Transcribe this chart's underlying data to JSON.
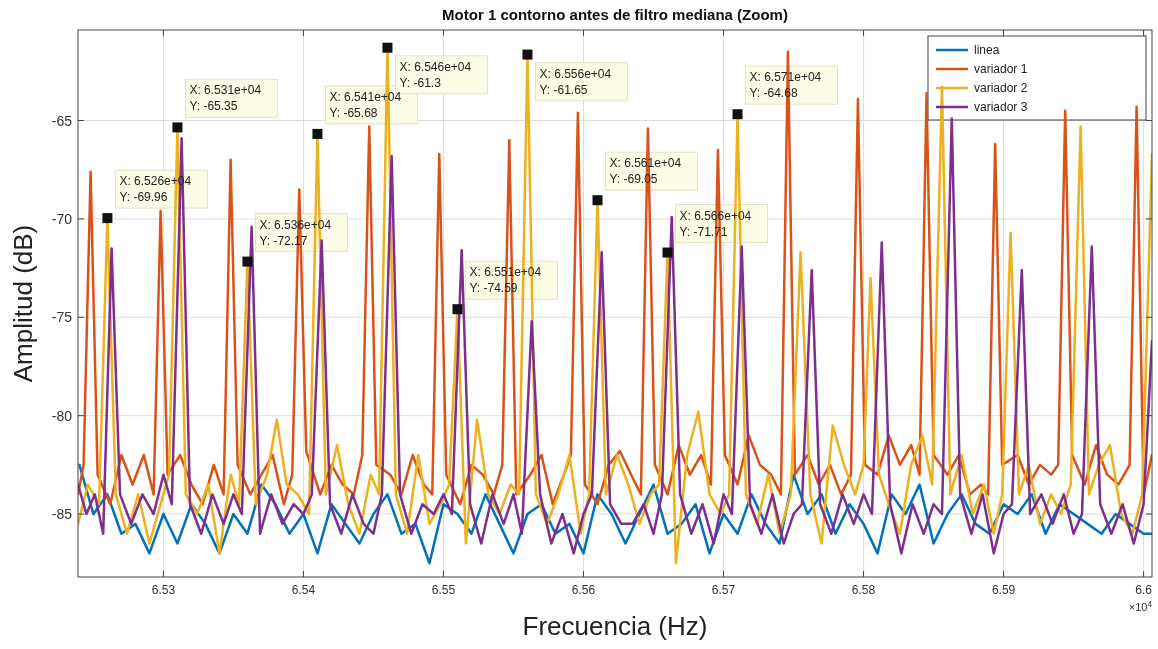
{
  "chart_data": {
    "type": "line",
    "title": "Motor 1 contorno antes de filtro mediana (Zoom)",
    "xlabel": "Frecuencia (Hz)",
    "ylabel": "Amplitud (dB)",
    "xlim": [
      6.5239,
      6.6006
    ],
    "ylim": [
      -88.2,
      -60.4
    ],
    "xticks": [
      6.53,
      6.54,
      6.55,
      6.56,
      6.57,
      6.58,
      6.59,
      6.6
    ],
    "yticks": [
      -85,
      -80,
      -75,
      -70,
      -65
    ],
    "grid": true,
    "legend": "top right",
    "marker": "none",
    "line_style": "solid",
    "series": [
      {
        "name": "linea",
        "color": "#0072bd",
        "x": [
          6.524,
          6.525,
          6.526,
          6.527,
          6.528,
          6.529,
          6.53,
          6.531,
          6.532,
          6.533,
          6.534,
          6.535,
          6.536,
          6.537,
          6.538,
          6.539,
          6.54,
          6.541,
          6.542,
          6.543,
          6.544,
          6.545,
          6.546,
          6.547,
          6.548,
          6.549,
          6.55,
          6.551,
          6.552,
          6.553,
          6.554,
          6.555,
          6.556,
          6.557,
          6.558,
          6.559,
          6.56,
          6.561,
          6.562,
          6.563,
          6.564,
          6.565,
          6.566,
          6.567,
          6.568,
          6.569,
          6.57,
          6.571,
          6.572,
          6.573,
          6.574,
          6.575,
          6.576,
          6.577,
          6.578,
          6.579,
          6.58,
          6.581,
          6.582,
          6.583,
          6.584,
          6.585,
          6.586,
          6.587,
          6.588,
          6.589,
          6.59,
          6.591,
          6.592,
          6.593,
          6.594,
          6.595,
          6.596,
          6.597,
          6.598,
          6.599,
          6.6,
          6.6006
        ],
        "values": [
          -82.5,
          -85,
          -84,
          -86,
          -85.5,
          -87,
          -85,
          -86.5,
          -84.5,
          -85.5,
          -87,
          -85,
          -86,
          -83.5,
          -84.5,
          -86,
          -85,
          -87,
          -84.5,
          -85.5,
          -86.5,
          -85,
          -84,
          -86,
          -85.5,
          -87.5,
          -84.5,
          -85,
          -86,
          -84,
          -85.5,
          -87,
          -85,
          -84.5,
          -86,
          -85.5,
          -87,
          -84,
          -85,
          -86.5,
          -85,
          -83.5,
          -86,
          -85.5,
          -84.5,
          -87,
          -85,
          -86,
          -84,
          -85.5,
          -86.5,
          -83,
          -85,
          -84,
          -86,
          -84.5,
          -85.5,
          -87,
          -84,
          -85,
          -83.5,
          -86.5,
          -85,
          -84,
          -85.5,
          -86,
          -84.5,
          -85,
          -84,
          -86,
          -84.5,
          -85,
          -85.5,
          -86,
          -85,
          -85.5,
          -86,
          -86
        ]
      },
      {
        "name": "variador 1",
        "color": "#d95319",
        "x": [
          6.5239,
          6.5243,
          6.5248,
          6.5253,
          6.5262,
          6.527,
          6.5278,
          6.5286,
          6.5293,
          6.5298,
          6.5303,
          6.5312,
          6.532,
          6.5328,
          6.5336,
          6.5343,
          6.5348,
          6.5353,
          6.5362,
          6.537,
          6.5378,
          6.5386,
          6.5392,
          6.5397,
          6.5402,
          6.5412,
          6.542,
          6.5428,
          6.5436,
          6.5442,
          6.5447,
          6.5452,
          6.5462,
          6.547,
          6.5478,
          6.5486,
          6.5492,
          6.5497,
          6.5502,
          6.5512,
          6.552,
          6.5528,
          6.5536,
          6.5542,
          6.5547,
          6.5552,
          6.5562,
          6.557,
          6.5578,
          6.5586,
          6.5591,
          6.5596,
          6.5601,
          6.561,
          6.5618,
          6.5626,
          6.5634,
          6.5641,
          6.5646,
          6.5651,
          6.566,
          6.5668,
          6.5676,
          6.5684,
          6.5691,
          6.5696,
          6.5701,
          6.571,
          6.5718,
          6.5726,
          6.5734,
          6.5741,
          6.5746,
          6.5751,
          6.576,
          6.5768,
          6.5776,
          6.5784,
          6.5791,
          6.5796,
          6.5801,
          6.581,
          6.5818,
          6.5826,
          6.5834,
          6.584,
          6.5845,
          6.585,
          6.586,
          6.5868,
          6.5876,
          6.5884,
          6.5889,
          6.5894,
          6.5899,
          6.591,
          6.5918,
          6.5926,
          6.5934,
          6.5939,
          6.5944,
          6.5949,
          6.5958,
          6.5966,
          6.5974,
          6.5982,
          6.599,
          6.5995,
          6.6,
          6.6006
        ],
        "values": [
          -84,
          -82.5,
          -67.6,
          -83,
          -84.5,
          -82,
          -83.5,
          -82,
          -84,
          -69.6,
          -83,
          -82,
          -83.5,
          -84.5,
          -82.5,
          -84,
          -67.0,
          -82.5,
          -84,
          -83,
          -82,
          -84.5,
          -83,
          -68.5,
          -81.8,
          -84,
          -82.5,
          -83.5,
          -84,
          -82,
          -65.3,
          -82.5,
          -83,
          -84,
          -82,
          -83.5,
          -84,
          -66.7,
          -83,
          -84.5,
          -82.5,
          -83,
          -84,
          -82.5,
          -66.0,
          -84,
          -83,
          -82,
          -84.5,
          -83,
          -82,
          -64.6,
          -83.5,
          -84.5,
          -82.5,
          -81.8,
          -83,
          -84,
          -65.4,
          -82.5,
          -84,
          -81.5,
          -83,
          -82,
          -83.5,
          -66.5,
          -82,
          -83.5,
          -81,
          -82.5,
          -83,
          -84,
          -61.5,
          -83,
          -82,
          -83.5,
          -82.5,
          -84,
          -83,
          -63.9,
          -82.5,
          -83,
          -81,
          -82.5,
          -81.5,
          -83,
          -63.6,
          -82,
          -83,
          -82,
          -84,
          -83.5,
          -84,
          -66.2,
          -82.5,
          -82,
          -83.5,
          -82.5,
          -83,
          -82.5,
          -64.5,
          -82,
          -83.5,
          -81.5,
          -83,
          -83.5,
          -82.5,
          -64.3,
          -84,
          -82
        ]
      },
      {
        "name": "variador 2",
        "color": "#edb120",
        "x": [
          6.5239,
          6.5246,
          6.5254,
          6.526,
          6.5266,
          6.5274,
          6.5282,
          6.529,
          6.5298,
          6.5304,
          6.531,
          6.5316,
          6.5324,
          6.5332,
          6.534,
          6.5348,
          6.5354,
          6.536,
          6.5366,
          6.5374,
          6.5381,
          6.5388,
          6.5396,
          6.5404,
          6.541,
          6.5416,
          6.5424,
          6.5432,
          6.544,
          6.5448,
          6.5454,
          6.546,
          6.5466,
          6.5474,
          6.5482,
          6.549,
          6.5498,
          6.5504,
          6.551,
          6.5516,
          6.5524,
          6.5532,
          6.554,
          6.5548,
          6.5554,
          6.556,
          6.5566,
          6.5574,
          6.5582,
          6.559,
          6.5598,
          6.5604,
          6.561,
          6.5616,
          6.5624,
          6.5632,
          6.564,
          6.5648,
          6.5654,
          6.566,
          6.5666,
          6.5674,
          6.5682,
          6.569,
          6.5698,
          6.5704,
          6.571,
          6.5716,
          6.5724,
          6.5732,
          6.574,
          6.5748,
          6.5755,
          6.5762,
          6.577,
          6.5778,
          6.5786,
          6.5794,
          6.58,
          6.5805,
          6.5811,
          6.5818,
          6.5826,
          6.5834,
          6.5842,
          6.5849,
          6.5856,
          6.5862,
          6.587,
          6.5878,
          6.5886,
          6.5893,
          6.5899,
          6.5905,
          6.5911,
          6.5918,
          6.5926,
          6.5934,
          6.5941,
          6.5948,
          6.5955,
          6.5961,
          6.5968,
          6.5976,
          6.5984,
          6.5992,
          6.5999,
          6.6006
        ],
        "values": [
          -85.5,
          -83.5,
          -84.5,
          -69.96,
          -84,
          -86,
          -84,
          -86.5,
          -84.5,
          -83,
          -65.35,
          -84,
          -85,
          -83.5,
          -87,
          -83,
          -84.5,
          -72.17,
          -84.5,
          -83,
          -80.2,
          -83.5,
          -84,
          -85,
          -65.68,
          -84,
          -81.5,
          -84.5,
          -86,
          -83,
          -84,
          -61.3,
          -84,
          -86,
          -82,
          -85.5,
          -84.5,
          -83.5,
          -74.59,
          -86.5,
          -80.2,
          -84,
          -85,
          -83.5,
          -84,
          -61.65,
          -84,
          -85.5,
          -84,
          -82,
          -86,
          -84,
          -69.05,
          -84,
          -82,
          -83.5,
          -85.5,
          -84,
          -83.5,
          -71.71,
          -87.5,
          -82,
          -79.8,
          -84,
          -85,
          -84,
          -64.68,
          -84,
          -85.5,
          -83,
          -86,
          -84,
          -71.7,
          -84,
          -86.5,
          -80.5,
          -82.5,
          -84,
          -82.5,
          -73.0,
          -83,
          -84.5,
          -86,
          -82.5,
          -81,
          -83.5,
          -63.3,
          -84,
          -82,
          -85,
          -83.5,
          -86,
          -84,
          -70.7,
          -84,
          -82.5,
          -85.5,
          -84,
          -85,
          -83.5,
          -65.3,
          -84,
          -82.5,
          -81.5,
          -85,
          -86,
          -84,
          -66.7
        ]
      },
      {
        "name": "variador 3",
        "color": "#7e2f8e",
        "x": [
          6.5239,
          6.5245,
          6.5251,
          6.5257,
          6.5263,
          6.5269,
          6.5277,
          6.5285,
          6.5293,
          6.53,
          6.5306,
          6.5313,
          6.5319,
          6.5327,
          6.5335,
          6.5343,
          6.535,
          6.5356,
          6.5363,
          6.5369,
          6.5377,
          6.5385,
          6.5393,
          6.54,
          6.5406,
          6.5413,
          6.5419,
          6.5427,
          6.5435,
          6.5443,
          6.545,
          6.5456,
          6.5463,
          6.5469,
          6.5477,
          6.5485,
          6.5493,
          6.55,
          6.5506,
          6.5513,
          6.5519,
          6.5527,
          6.5535,
          6.5543,
          6.555,
          6.5556,
          6.5563,
          6.5569,
          6.5577,
          6.5585,
          6.5593,
          6.56,
          6.5606,
          6.5613,
          6.5619,
          6.5627,
          6.5635,
          6.5643,
          6.565,
          6.5656,
          6.5663,
          6.5669,
          6.5677,
          6.5685,
          6.5693,
          6.57,
          6.5706,
          6.5713,
          6.5719,
          6.5727,
          6.5735,
          6.5743,
          6.575,
          6.5756,
          6.5763,
          6.5769,
          6.5777,
          6.5785,
          6.5793,
          6.58,
          6.5806,
          6.5813,
          6.5819,
          6.5827,
          6.5835,
          6.5843,
          6.585,
          6.5856,
          6.5863,
          6.5869,
          6.5877,
          6.5885,
          6.5893,
          6.59,
          6.5906,
          6.5913,
          6.5919,
          6.5927,
          6.5935,
          6.5943,
          6.595,
          6.5956,
          6.5963,
          6.5969,
          6.5977,
          6.5985,
          6.5993,
          6.6,
          6.6006
        ],
        "values": [
          -83.5,
          -85,
          -84,
          -86,
          -71.5,
          -84,
          -85.5,
          -84,
          -85,
          -83,
          -84.5,
          -65.9,
          -84.5,
          -86,
          -84,
          -85.5,
          -84,
          -85,
          -70.4,
          -86,
          -84,
          -85.5,
          -84.5,
          -85,
          -84,
          -71.1,
          -84.5,
          -86,
          -84,
          -85.5,
          -86,
          -84,
          -66.8,
          -84,
          -86,
          -84.5,
          -85,
          -84,
          -85,
          -71.6,
          -84.5,
          -86.5,
          -84,
          -85.5,
          -84,
          -86,
          -75.2,
          -84,
          -86.5,
          -85,
          -87,
          -85,
          -84,
          -71.7,
          -84.5,
          -85.5,
          -85.5,
          -84.5,
          -86,
          -84,
          -69.9,
          -84,
          -86,
          -84.5,
          -86.5,
          -84,
          -85,
          -71.4,
          -84.5,
          -86,
          -84,
          -86.5,
          -85,
          -84.5,
          -72.6,
          -84.5,
          -86,
          -84,
          -85.5,
          -84,
          -85,
          -71.2,
          -84.5,
          -87,
          -84.5,
          -86,
          -84.5,
          -85,
          -64.9,
          -84,
          -86,
          -84,
          -87,
          -85,
          -84.5,
          -72.6,
          -85,
          -84,
          -85.5,
          -84,
          -86,
          -85,
          -71.4,
          -84.5,
          -86,
          -84.5,
          -86.5,
          -84.5,
          -76.2
        ]
      }
    ],
    "annotations": [
      {
        "text": "X: 6.526e+04\nY: -69.96",
        "x": 6.526,
        "y": -69.96
      },
      {
        "text": "X: 6.531e+04\nY: -65.35",
        "x": 6.531,
        "y": -65.35
      },
      {
        "text": "X: 6.536e+04\nY: -72.17",
        "x": 6.536,
        "y": -72.17
      },
      {
        "text": "X: 6.541e+04\nY: -65.68",
        "x": 6.541,
        "y": -65.68
      },
      {
        "text": "X: 6.546e+04\nY: -61.3",
        "x": 6.546,
        "y": -61.3
      },
      {
        "text": "X: 6.551e+04\nY: -74.59",
        "x": 6.551,
        "y": -74.59
      },
      {
        "text": "X: 6.556e+04\nY: -61.65",
        "x": 6.556,
        "y": -61.65
      },
      {
        "text": "X: 6.561e+04\nY: -69.05",
        "x": 6.561,
        "y": -69.05
      },
      {
        "text": "X: 6.566e+04\nY: -71.71",
        "x": 6.566,
        "y": -71.71
      },
      {
        "text": "X: 6.571e+04\nY: -64.68",
        "x": 6.571,
        "y": -64.68
      },
      "×10$^{4}$"
    ]
  }
}
